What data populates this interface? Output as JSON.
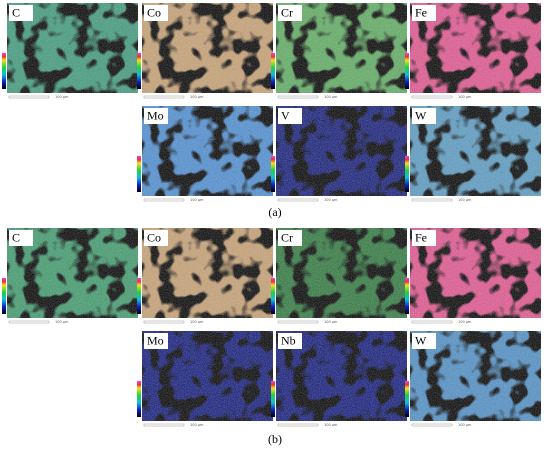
{
  "panels": [
    {
      "caption": "(a)",
      "maps": [
        {
          "element": "C",
          "scale": "100 µm"
        },
        {
          "element": "Co",
          "scale": "100 µm"
        },
        {
          "element": "Cr",
          "scale": "100 µm"
        },
        {
          "element": "Fe",
          "scale": "100 µm"
        },
        {
          "element": "Mo",
          "scale": "100 µm"
        },
        {
          "element": "V",
          "scale": "100 µm"
        },
        {
          "element": "W",
          "scale": "100 µm"
        }
      ]
    },
    {
      "caption": "(b)",
      "maps": [
        {
          "element": "C",
          "scale": "100 µm"
        },
        {
          "element": "Co",
          "scale": "100 µm"
        },
        {
          "element": "Cr",
          "scale": "100 µm"
        },
        {
          "element": "Fe",
          "scale": "100 µm"
        },
        {
          "element": "Mo",
          "scale": "100 µm"
        },
        {
          "element": "Nb",
          "scale": "100 µm"
        },
        {
          "element": "W",
          "scale": "100 µm"
        }
      ]
    }
  ]
}
